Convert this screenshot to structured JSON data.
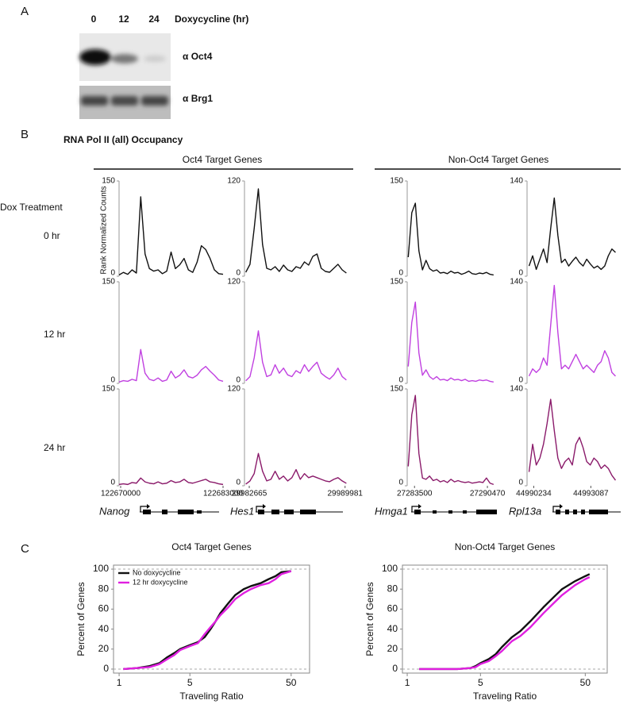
{
  "panel_a": {
    "label": "A",
    "lanes": [
      "0",
      "12",
      "24"
    ],
    "treatment": "Doxycycline (hr)",
    "blots": [
      "α Oct4",
      "α Brg1"
    ]
  },
  "panel_b": {
    "label": "B",
    "title": "RNA Pol II (all) Occupancy",
    "groups": [
      "Oct4 Target Genes",
      "Non-Oct4 Target Genes"
    ],
    "row_header": "Dox Treatment",
    "ylabel": "Rank Normalized Counts",
    "rows": [
      {
        "label": "0 hr",
        "color": "#111111"
      },
      {
        "label": "12 hr",
        "color": "#c040e0"
      },
      {
        "label": "24 hr",
        "color": "#8a1a6a"
      }
    ],
    "genes": [
      {
        "name": "Nanog",
        "xlim": [
          122669800,
          122683200
        ],
        "xticks": [
          122670000,
          122683000
        ],
        "ylim": [
          0,
          150
        ],
        "yticks": [
          0,
          150
        ],
        "x": [
          122669800,
          122670350,
          122670900,
          122671450,
          122672000,
          122672550,
          122673100,
          122673650,
          122674200,
          122674750,
          122675300,
          122675850,
          122676400,
          122676950,
          122677500,
          122678050,
          122678600,
          122679150,
          122679700,
          122680250,
          122680800,
          122681350,
          122681900,
          122682450,
          122683000
        ],
        "traces": [
          [
            2,
            6,
            3,
            10,
            5,
            125,
            35,
            12,
            8,
            10,
            4,
            8,
            38,
            12,
            18,
            28,
            10,
            6,
            22,
            48,
            42,
            28,
            10,
            4,
            3
          ],
          [
            2,
            4,
            3,
            6,
            4,
            50,
            15,
            6,
            4,
            8,
            3,
            5,
            18,
            8,
            12,
            20,
            10,
            8,
            12,
            20,
            25,
            18,
            12,
            5,
            3
          ],
          [
            2,
            3,
            2,
            5,
            4,
            12,
            6,
            4,
            3,
            6,
            3,
            4,
            8,
            5,
            6,
            10,
            5,
            4,
            6,
            8,
            10,
            6,
            5,
            3,
            2
          ]
        ]
      },
      {
        "name": "Hes1",
        "xlim": [
          29982300,
          29990300
        ],
        "xticks": [
          29982665,
          29989981
        ],
        "ylim": [
          0,
          120
        ],
        "yticks": [
          0,
          120
        ],
        "x": [
          29982400,
          29982720,
          29983040,
          29983360,
          29983680,
          29984000,
          29984320,
          29984640,
          29984960,
          29985280,
          29985600,
          29985920,
          29986240,
          29986560,
          29986880,
          29987200,
          29987520,
          29987840,
          29988160,
          29988480,
          29988800,
          29989120,
          29989440,
          29989760,
          29990080
        ],
        "traces": [
          [
            5,
            15,
            60,
            110,
            40,
            10,
            8,
            12,
            6,
            14,
            8,
            6,
            12,
            10,
            18,
            14,
            25,
            28,
            10,
            6,
            5,
            10,
            15,
            8,
            4
          ],
          [
            3,
            8,
            30,
            62,
            25,
            8,
            10,
            22,
            12,
            18,
            10,
            8,
            15,
            12,
            22,
            14,
            20,
            25,
            12,
            8,
            5,
            10,
            18,
            8,
            4
          ],
          [
            2,
            6,
            15,
            40,
            18,
            6,
            8,
            18,
            8,
            12,
            6,
            10,
            20,
            8,
            15,
            10,
            12,
            10,
            8,
            6,
            5,
            8,
            10,
            6,
            3
          ]
        ]
      },
      {
        "name": "Hmga1",
        "xlim": [
          27282800,
          27291300
        ],
        "xticks": [
          27283500,
          27290470
        ],
        "ylim": [
          0,
          150
        ],
        "yticks": [
          0,
          150
        ],
        "x": [
          27282900,
          27283240,
          27283580,
          27283920,
          27284260,
          27284600,
          27284940,
          27285280,
          27285620,
          27285960,
          27286300,
          27286640,
          27286980,
          27287320,
          27287660,
          27288000,
          27288340,
          27288680,
          27289020,
          27289360,
          27289700,
          27290040,
          27290380,
          27290720,
          27291060
        ],
        "traces": [
          [
            30,
            100,
            115,
            40,
            10,
            25,
            12,
            8,
            10,
            5,
            6,
            4,
            8,
            5,
            6,
            3,
            5,
            8,
            4,
            3,
            5,
            4,
            6,
            3,
            2
          ],
          [
            25,
            90,
            120,
            45,
            12,
            20,
            10,
            6,
            10,
            5,
            6,
            4,
            8,
            5,
            6,
            4,
            6,
            3,
            4,
            3,
            5,
            4,
            5,
            3,
            2
          ],
          [
            30,
            110,
            140,
            50,
            12,
            10,
            15,
            8,
            10,
            6,
            8,
            5,
            10,
            6,
            8,
            6,
            5,
            6,
            4,
            5,
            6,
            5,
            12,
            4,
            2
          ]
        ]
      },
      {
        "name": "Rpl13a",
        "xlim": [
          44989900,
          44994500
        ],
        "xticks": [
          44990234,
          44993087
        ],
        "ylim": [
          0,
          140
        ],
        "yticks": [
          0,
          140
        ],
        "x": [
          44990000,
          44990180,
          44990360,
          44990540,
          44990720,
          44990900,
          44991080,
          44991260,
          44991440,
          44991620,
          44991800,
          44991980,
          44992160,
          44992340,
          44992520,
          44992700,
          44992880,
          44993060,
          44993240,
          44993420,
          44993600,
          44993780,
          44993960,
          44994140,
          44994320
        ],
        "traces": [
          [
            15,
            30,
            10,
            25,
            40,
            20,
            70,
            115,
            60,
            20,
            25,
            15,
            22,
            28,
            20,
            15,
            25,
            18,
            12,
            15,
            10,
            15,
            30,
            40,
            35
          ],
          [
            10,
            20,
            15,
            20,
            35,
            25,
            80,
            135,
            70,
            20,
            25,
            20,
            30,
            40,
            30,
            20,
            25,
            20,
            15,
            25,
            30,
            45,
            35,
            15,
            10
          ],
          [
            20,
            60,
            30,
            40,
            60,
            90,
            125,
            80,
            40,
            25,
            35,
            40,
            30,
            60,
            70,
            55,
            35,
            30,
            40,
            35,
            25,
            30,
            25,
            15,
            8
          ]
        ]
      }
    ]
  },
  "panel_c": {
    "label": "C"
  },
  "chart_data": [
    {
      "type": "line",
      "title": "Oct4 Target Genes",
      "xlabel": "Traveling Ratio",
      "ylabel": "Percent of Genes",
      "log_x": true,
      "xlim": [
        0.88,
        76
      ],
      "xticks": [
        1,
        5,
        50
      ],
      "ylim": [
        -4,
        104
      ],
      "yticks": [
        0,
        20,
        40,
        60,
        80,
        100
      ],
      "legend": "upper left",
      "series": [
        {
          "name": "No doxycycline",
          "color": "#111111",
          "x": [
            1.1,
            1.5,
            2,
            2.5,
            3,
            3.5,
            4,
            5,
            6,
            7,
            8,
            9,
            10,
            12,
            14,
            17,
            20,
            25,
            30,
            35,
            40,
            50
          ],
          "values": [
            0,
            1,
            3,
            6,
            12,
            16,
            20,
            24,
            27,
            32,
            40,
            48,
            56,
            66,
            74,
            80,
            83,
            86,
            90,
            93,
            97,
            98
          ]
        },
        {
          "name": "12 hr doxycycline",
          "color": "#e020e0",
          "x": [
            1.1,
            1.5,
            2,
            2.5,
            3,
            3.5,
            4,
            5,
            6,
            7,
            8,
            9,
            10,
            12,
            14,
            17,
            20,
            25,
            30,
            35,
            40,
            50
          ],
          "values": [
            0,
            1,
            2,
            5,
            10,
            14,
            19,
            23,
            26,
            35,
            42,
            48,
            54,
            62,
            70,
            76,
            80,
            84,
            86,
            90,
            95,
            98
          ]
        }
      ]
    },
    {
      "type": "line",
      "title": "Non-Oct4 Target Genes",
      "xlabel": "Traveling Ratio",
      "ylabel": "Percent of Genes",
      "log_x": true,
      "xlim": [
        0.9,
        81
      ],
      "xticks": [
        1,
        5,
        50
      ],
      "ylim": [
        -4,
        104
      ],
      "yticks": [
        0,
        20,
        40,
        60,
        80,
        100
      ],
      "series": [
        {
          "color": "#111111",
          "x": [
            1.3,
            2,
            3,
            4,
            4.5,
            5,
            6,
            7,
            8,
            10,
            12,
            15,
            20,
            25,
            30,
            40,
            50,
            55
          ],
          "values": [
            0,
            0,
            0,
            1,
            3,
            6,
            10,
            15,
            22,
            32,
            38,
            48,
            62,
            72,
            80,
            88,
            93,
            95
          ]
        },
        {
          "color": "#e020e0",
          "x": [
            1.3,
            2,
            3,
            4,
            4.5,
            5,
            6,
            7,
            8,
            10,
            12,
            15,
            20,
            25,
            30,
            40,
            50,
            55
          ],
          "values": [
            0,
            0,
            0,
            1,
            2,
            5,
            8,
            13,
            18,
            28,
            33,
            42,
            56,
            66,
            74,
            84,
            90,
            92
          ]
        }
      ]
    }
  ]
}
